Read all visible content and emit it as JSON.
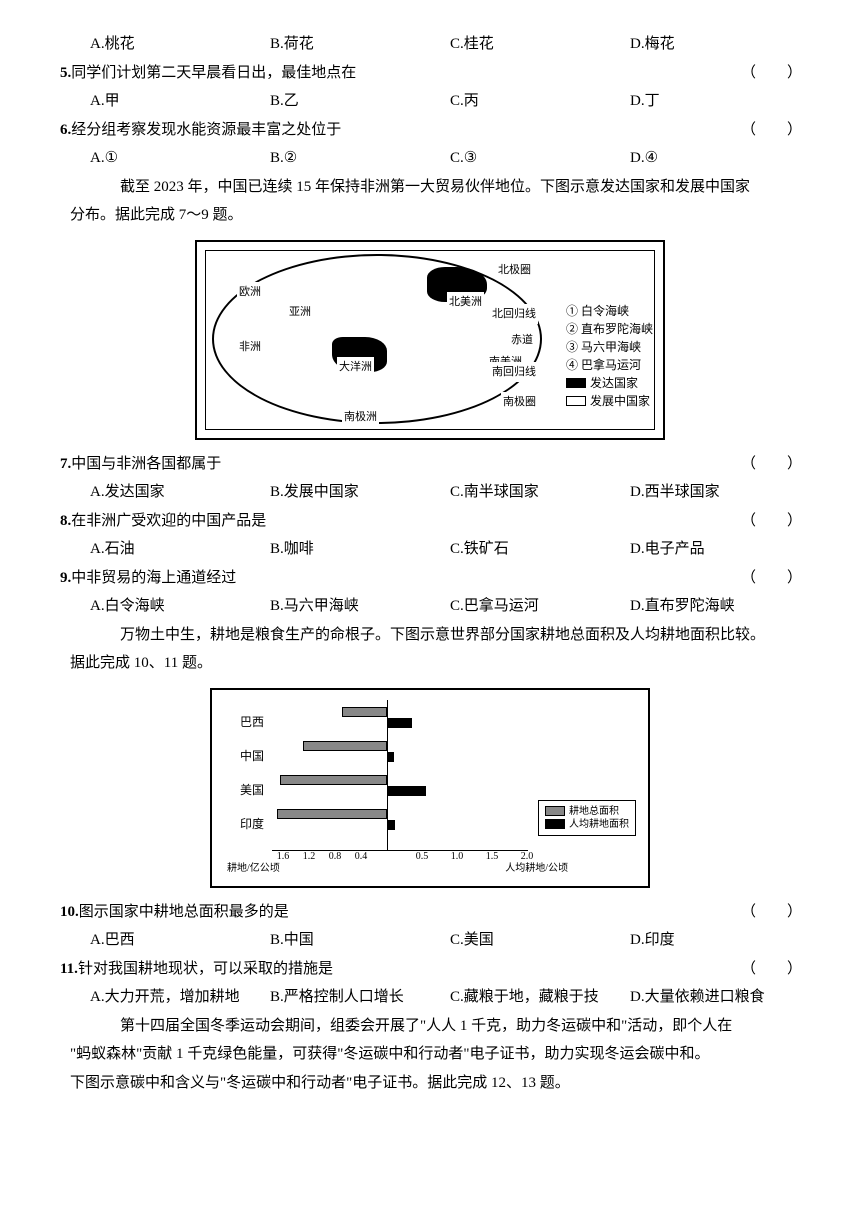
{
  "q4_options": {
    "a": "A.桃花",
    "b": "B.荷花",
    "c": "C.桂花",
    "d": "D.梅花"
  },
  "q5": {
    "num": "5.",
    "text": "同学们计划第二天早晨看日出，最佳地点在",
    "paren": "（　）"
  },
  "q5_options": {
    "a": "A.甲",
    "b": "B.乙",
    "c": "C.丙",
    "d": "D.丁"
  },
  "q6": {
    "num": "6.",
    "text": "经分组考察发现水能资源最丰富之处位于",
    "paren": "（　）"
  },
  "q6_options": {
    "a": "A.①",
    "b": "B.②",
    "c": "C.③",
    "d": "D.④"
  },
  "passage1": "截至 2023 年，中国已连续 15 年保持非洲第一大贸易伙伴地位。下图示意发达国家和发展中国家",
  "passage1b": "分布。据此完成 7～9 题。",
  "map": {
    "continents": {
      "asia": "亚洲",
      "europe": "欧洲",
      "africa": "非洲",
      "na": "北美洲",
      "sa": "南美洲",
      "oceania": "大洋洲",
      "antarctica": "南极洲"
    },
    "lines": {
      "arctic": "北极圈",
      "tropic_n": "北回归线",
      "equator": "赤道",
      "tropic_s": "南回归线",
      "antarctic": "南极圈"
    },
    "legend": {
      "l1": "① 白令海峡",
      "l2": "② 直布罗陀海峡",
      "l3": "③ 马六甲海峡",
      "l4": "④ 巴拿马运河",
      "l5": "发达国家",
      "l6": "发展中国家"
    }
  },
  "q7": {
    "num": "7.",
    "text": "中国与非洲各国都属于",
    "paren": "（　）"
  },
  "q7_options": {
    "a": "A.发达国家",
    "b": "B.发展中国家",
    "c": "C.南半球国家",
    "d": "D.西半球国家"
  },
  "q8": {
    "num": "8.",
    "text": "在非洲广受欢迎的中国产品是",
    "paren": "（　）"
  },
  "q8_options": {
    "a": "A.石油",
    "b": "B.咖啡",
    "c": "C.铁矿石",
    "d": "D.电子产品"
  },
  "q9": {
    "num": "9.",
    "text": "中非贸易的海上通道经过",
    "paren": "（　）"
  },
  "q9_options": {
    "a": "A.白令海峡",
    "b": "B.马六甲海峡",
    "c": "C.巴拿马运河",
    "d": "D.直布罗陀海峡"
  },
  "passage2": "万物土中生，耕地是粮食生产的命根子。下图示意世界部分国家耕地总面积及人均耕地面积比较。",
  "passage2b": "据此完成 10、11 题。",
  "chart": {
    "type": "bar",
    "countries": [
      "巴西",
      "中国",
      "美国",
      "印度"
    ],
    "total_area": [
      0.7,
      1.3,
      1.65,
      1.7
    ],
    "per_capita": [
      0.35,
      0.1,
      0.55,
      0.12
    ],
    "left_ticks": [
      "1.6",
      "1.2",
      "0.8",
      "0.4"
    ],
    "right_ticks": [
      "0.5",
      "1.0",
      "1.5",
      "2.0"
    ],
    "xlabel_left": "耕地/亿公顷",
    "xlabel_right": "人均耕地/公顷",
    "legend": {
      "l1": "耕地总面积",
      "l2": "人均耕地面积"
    },
    "colors": {
      "gray": "#888888",
      "black": "#000000"
    }
  },
  "q10": {
    "num": "10.",
    "text": "图示国家中耕地总面积最多的是",
    "paren": "（　）"
  },
  "q10_options": {
    "a": "A.巴西",
    "b": "B.中国",
    "c": "C.美国",
    "d": "D.印度"
  },
  "q11": {
    "num": "11.",
    "text": "针对我国耕地现状，可以采取的措施是",
    "paren": "（　）"
  },
  "q11_options": {
    "a": "A.大力开荒，增加耕地",
    "b": "B.严格控制人口增长",
    "c": "C.藏粮于地，藏粮于技",
    "d": "D.大量依赖进口粮食"
  },
  "passage3a": "第十四届全国冬季运动会期间，组委会开展了\"人人 1 千克，助力冬运碳中和\"活动，即个人在",
  "passage3b": "\"蚂蚁森林\"贡献 1 千克绿色能量，可获得\"冬运碳中和行动者\"电子证书，助力实现冬运会碳中和。",
  "passage3c": "下图示意碳中和含义与\"冬运碳中和行动者\"电子证书。据此完成 12、13 题。"
}
